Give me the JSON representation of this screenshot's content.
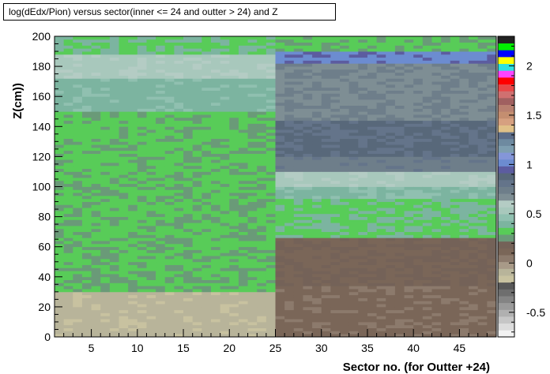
{
  "title": "log(dEdx/Pion) versus sector(inner <= 24 and outter > 24)  and Z",
  "chart_data": {
    "type": "heatmap",
    "title": "log(dEdx/Pion) versus sector(inner <= 24 and outter > 24)  and Z",
    "xlabel": "Sector no. (for Outter +24)",
    "ylabel": "Z(cm))",
    "xlim": [
      1,
      49
    ],
    "ylim": [
      0,
      200
    ],
    "x_ticks": [
      "5",
      "10",
      "15",
      "20",
      "25",
      "30",
      "35",
      "40",
      "45"
    ],
    "y_ticks": [
      "0",
      "20",
      "40",
      "60",
      "80",
      "100",
      "120",
      "140",
      "160",
      "180",
      "200"
    ],
    "z_ticks": [
      "-0.5",
      "0",
      "0.5",
      "1",
      "1.5",
      "2"
    ],
    "zlim": [
      -0.75,
      2.3
    ],
    "sectors": 48,
    "z_bins": 100,
    "regions": {
      "inner_sectors_1_24": [
        {
          "z_range": [
            0,
            30
          ],
          "value": -0.1
        },
        {
          "z_range": [
            30,
            64
          ],
          "value": 0.3
        },
        {
          "z_range": [
            64,
            150
          ],
          "value": 0.3
        },
        {
          "z_range": [
            150,
            172
          ],
          "value": 0.4
        },
        {
          "z_range": [
            172,
            188
          ],
          "value": 0.55
        },
        {
          "z_range": [
            188,
            200
          ],
          "value": 0.35
        }
      ],
      "outer_sectors_25_48": [
        {
          "z_range": [
            0,
            35
          ],
          "value": 0.1
        },
        {
          "z_range": [
            35,
            66
          ],
          "value": 0.15
        },
        {
          "z_range": [
            66,
            92
          ],
          "value": 0.35
        },
        {
          "z_range": [
            92,
            100
          ],
          "value": 0.42
        },
        {
          "z_range": [
            100,
            110
          ],
          "value": 0.55
        },
        {
          "z_range": [
            110,
            120
          ],
          "value": 0.75
        },
        {
          "z_range": [
            120,
            145
          ],
          "value": 0.85
        },
        {
          "z_range": [
            145,
            162
          ],
          "value": 0.7
        },
        {
          "z_range": [
            162,
            182
          ],
          "value": 0.7
        },
        {
          "z_range": [
            182,
            190
          ],
          "value": 1.0
        }
      ]
    },
    "palette": [
      "#f2f2f2",
      "#dcdcdc",
      "#c6c6c6",
      "#b0b0b0",
      "#9a9a9a",
      "#848484",
      "#6e6e6e",
      "#585858",
      "#c8c2a0",
      "#b8b49a",
      "#a89a88",
      "#8c7a6c",
      "#7a6658",
      "#746258",
      "#6a9a78",
      "#58cc58",
      "#7cb4a0",
      "#90c0b0",
      "#a8c8bc",
      "#b4ccc4",
      "#7e8e94",
      "#6e7e8a",
      "#64748a",
      "#58687a",
      "#5c5ca0",
      "#6c8cd0",
      "#8496d8",
      "#7e9eb0",
      "#6e8aa0",
      "#5c6c88",
      "#e0c088",
      "#d6a080",
      "#c48e70",
      "#b88070",
      "#a06060",
      "#d07070",
      "#e84848",
      "#ff0000",
      "#ff44ff",
      "#2ee0e0",
      "#ffff00",
      "#0000ff",
      "#00ee00",
      "#222222"
    ]
  }
}
